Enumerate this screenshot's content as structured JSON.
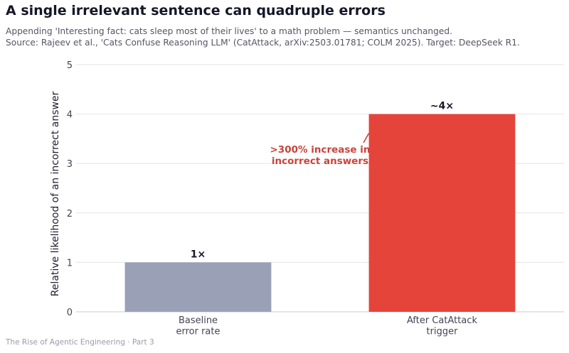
{
  "header": {
    "title": "A single irrelevant sentence can quadruple errors",
    "subtitle_line1": "Appending 'Interesting fact: cats sleep most of their lives' to a math problem — semantics unchanged.",
    "subtitle_line2": "Source: Rajeev et al., 'Cats Confuse Reasoning LLM' (CatAttack, arXiv:2503.01781; COLM 2025). Target: DeepSeek R1."
  },
  "footer": {
    "text": "The Rise of Agentic Engineering · Part 3"
  },
  "chart_data": {
    "type": "bar",
    "categories": [
      [
        "Baseline",
        "error rate"
      ],
      [
        "After CatAttack",
        "trigger"
      ]
    ],
    "values": [
      1,
      4
    ],
    "value_labels": [
      "1×",
      "~4×"
    ],
    "colors": [
      "#9aa0b6",
      "#e5443b"
    ],
    "ylabel": "Relative likelihood of an incorrect answer",
    "ylim": [
      0,
      5
    ],
    "yticks": [
      0,
      1,
      2,
      3,
      4,
      5
    ],
    "grid": true,
    "annotation": {
      "lines": [
        ">300% increase in",
        "incorrect answers"
      ],
      "color": "#c9433a",
      "points_to_bar": 1
    }
  }
}
